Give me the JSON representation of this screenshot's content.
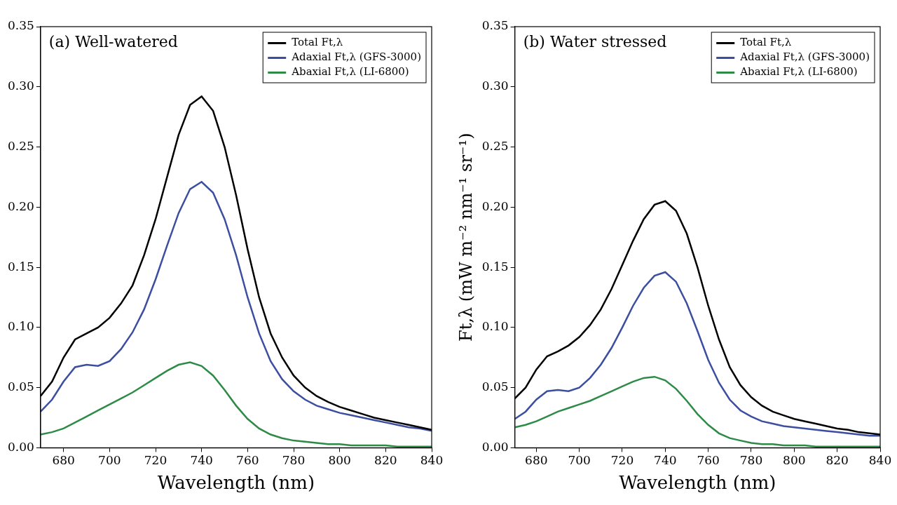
{
  "chart_data": [
    {
      "type": "line",
      "title": "(a) Well-watered",
      "x_label": "Wavelength (nm)",
      "x": [
        670,
        675,
        680,
        685,
        690,
        695,
        700,
        705,
        710,
        715,
        720,
        725,
        730,
        735,
        740,
        745,
        750,
        755,
        760,
        765,
        770,
        775,
        780,
        785,
        790,
        795,
        800,
        805,
        810,
        815,
        820,
        825,
        830,
        835,
        840
      ],
      "series": [
        {
          "name": "Total Ft,λ",
          "color": "#000000",
          "values": [
            0.043,
            0.055,
            0.075,
            0.09,
            0.095,
            0.1,
            0.108,
            0.12,
            0.135,
            0.16,
            0.19,
            0.225,
            0.26,
            0.285,
            0.292,
            0.28,
            0.25,
            0.21,
            0.165,
            0.125,
            0.095,
            0.075,
            0.06,
            0.05,
            0.043,
            0.038,
            0.034,
            0.031,
            0.028,
            0.025,
            0.023,
            0.021,
            0.019,
            0.017,
            0.015
          ]
        },
        {
          "name": "Adaxial Ft,λ (GFS-3000)",
          "color": "#3b4ea0",
          "values": [
            0.03,
            0.04,
            0.055,
            0.067,
            0.069,
            0.068,
            0.072,
            0.082,
            0.096,
            0.115,
            0.14,
            0.168,
            0.195,
            0.215,
            0.221,
            0.212,
            0.19,
            0.16,
            0.125,
            0.095,
            0.072,
            0.057,
            0.047,
            0.04,
            0.035,
            0.032,
            0.029,
            0.027,
            0.025,
            0.023,
            0.021,
            0.019,
            0.017,
            0.016,
            0.014
          ]
        },
        {
          "name": "Abaxial Ft,λ (LI-6800)",
          "color": "#2e8b47",
          "values": [
            0.011,
            0.013,
            0.016,
            0.021,
            0.026,
            0.031,
            0.036,
            0.041,
            0.046,
            0.052,
            0.058,
            0.064,
            0.069,
            0.071,
            0.068,
            0.06,
            0.048,
            0.035,
            0.024,
            0.016,
            0.011,
            0.008,
            0.006,
            0.005,
            0.004,
            0.003,
            0.003,
            0.002,
            0.002,
            0.002,
            0.002,
            0.001,
            0.001,
            0.001,
            0.001
          ]
        }
      ],
      "xlim": [
        670,
        840
      ],
      "xticks": [
        680,
        700,
        720,
        740,
        760,
        780,
        800,
        820,
        840
      ],
      "ylim": [
        0,
        0.35
      ],
      "yticks": [
        {
          "value": 0,
          "label": "0.00"
        },
        {
          "value": 0.05,
          "label": "0.05"
        },
        {
          "value": 0.1,
          "label": "0.10"
        },
        {
          "value": 0.15,
          "label": "0.15"
        },
        {
          "value": 0.2,
          "label": "0.20"
        },
        {
          "value": 0.25,
          "label": "0.25"
        },
        {
          "value": 0.3,
          "label": "0.30"
        },
        {
          "value": 0.35,
          "label": "0.35"
        }
      ],
      "grid": false,
      "legend": "upper right"
    },
    {
      "type": "line",
      "title": "(b) Water stressed",
      "x_label": "Wavelength (nm)",
      "y_label": "Ft,λ (mW m⁻² nm⁻¹ sr⁻¹)",
      "x": [
        670,
        675,
        680,
        685,
        690,
        695,
        700,
        705,
        710,
        715,
        720,
        725,
        730,
        735,
        740,
        745,
        750,
        755,
        760,
        765,
        770,
        775,
        780,
        785,
        790,
        795,
        800,
        805,
        810,
        815,
        820,
        825,
        830,
        835,
        840
      ],
      "series": [
        {
          "name": "Total Ft,λ",
          "color": "#000000",
          "values": [
            0.041,
            0.05,
            0.065,
            0.076,
            0.08,
            0.085,
            0.092,
            0.102,
            0.115,
            0.132,
            0.152,
            0.172,
            0.19,
            0.202,
            0.205,
            0.197,
            0.178,
            0.15,
            0.118,
            0.09,
            0.067,
            0.052,
            0.042,
            0.035,
            0.03,
            0.027,
            0.024,
            0.022,
            0.02,
            0.018,
            0.016,
            0.015,
            0.013,
            0.012,
            0.011
          ]
        },
        {
          "name": "Adaxial Ft,λ (GFS-3000)",
          "color": "#3b4ea0",
          "values": [
            0.024,
            0.03,
            0.04,
            0.047,
            0.048,
            0.047,
            0.05,
            0.058,
            0.069,
            0.083,
            0.1,
            0.118,
            0.133,
            0.143,
            0.146,
            0.138,
            0.12,
            0.097,
            0.073,
            0.054,
            0.04,
            0.031,
            0.026,
            0.022,
            0.02,
            0.018,
            0.017,
            0.016,
            0.015,
            0.014,
            0.013,
            0.012,
            0.011,
            0.01,
            0.01
          ]
        },
        {
          "name": "Abaxial Ft,λ (LI-6800)",
          "color": "#2e8b47",
          "values": [
            0.017,
            0.019,
            0.022,
            0.026,
            0.03,
            0.033,
            0.036,
            0.039,
            0.043,
            0.047,
            0.051,
            0.055,
            0.058,
            0.059,
            0.056,
            0.049,
            0.039,
            0.028,
            0.019,
            0.012,
            0.008,
            0.006,
            0.004,
            0.003,
            0.003,
            0.002,
            0.002,
            0.002,
            0.001,
            0.001,
            0.001,
            0.001,
            0.001,
            0.001,
            0.001
          ]
        }
      ],
      "xlim": [
        670,
        840
      ],
      "xticks": [
        680,
        700,
        720,
        740,
        760,
        780,
        800,
        820,
        840
      ],
      "ylim": [
        0,
        0.35
      ],
      "yticks": [
        {
          "value": 0,
          "label": "0.00"
        },
        {
          "value": 0.05,
          "label": "0.05"
        },
        {
          "value": 0.1,
          "label": "0.10"
        },
        {
          "value": 0.15,
          "label": "0.15"
        },
        {
          "value": 0.2,
          "label": "0.20"
        },
        {
          "value": 0.25,
          "label": "0.25"
        },
        {
          "value": 0.3,
          "label": "0.30"
        },
        {
          "value": 0.35,
          "label": "0.35"
        }
      ],
      "grid": false,
      "legend": "upper right"
    }
  ]
}
